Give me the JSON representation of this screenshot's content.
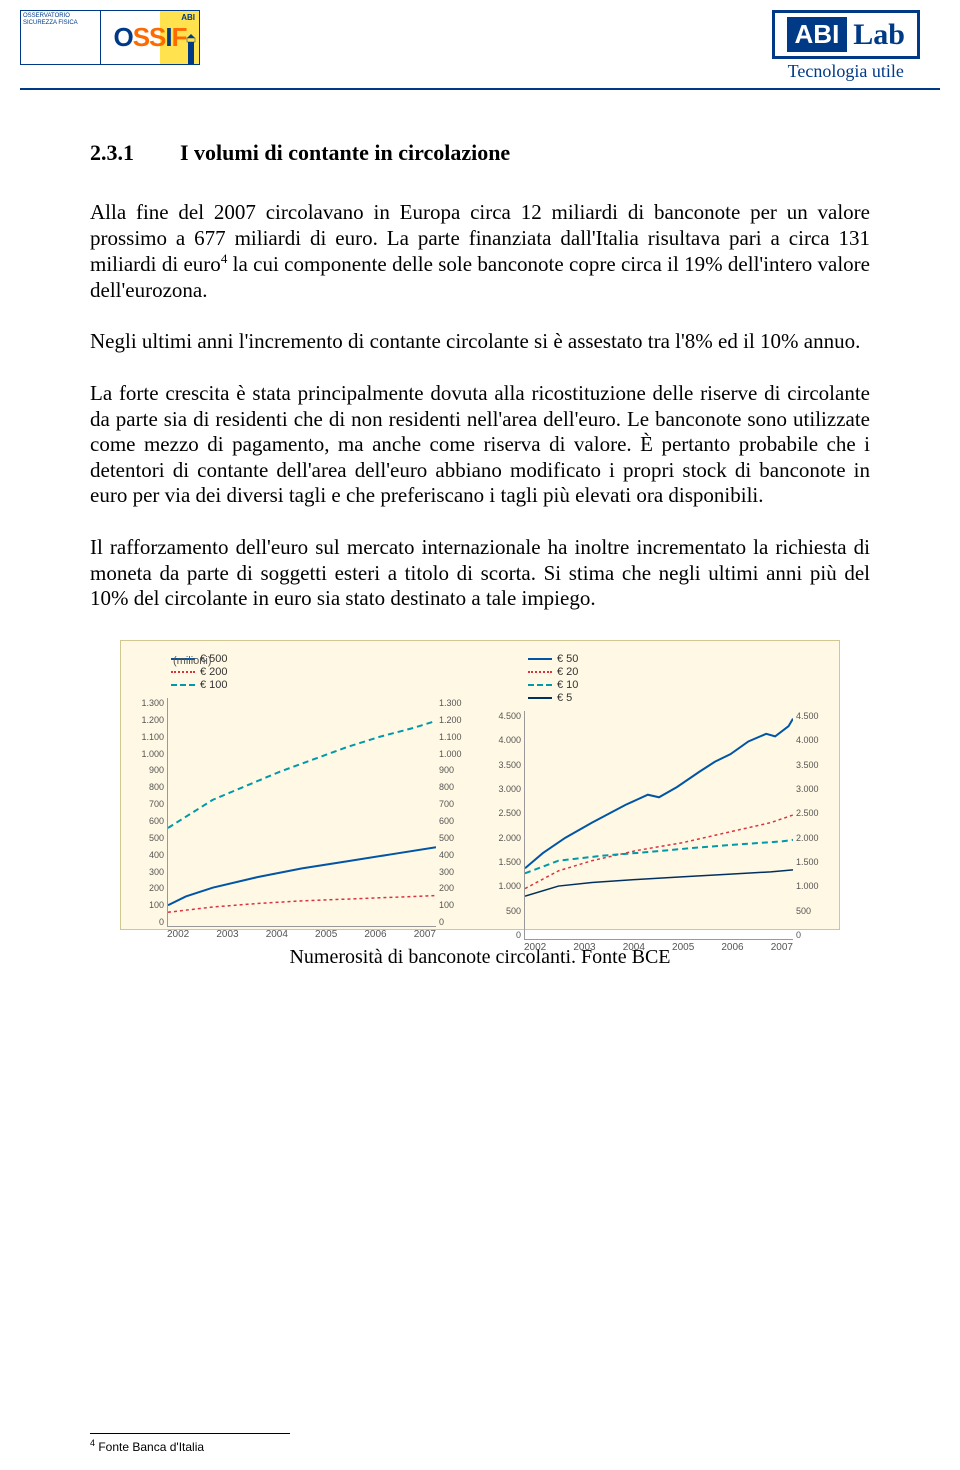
{
  "header": {
    "ossif": {
      "left_lines": "OSSERVATORIO\nSICUREZZA\nFISICA",
      "abi": "ABI",
      "letters": [
        "O",
        "S",
        "S",
        "I",
        "F"
      ]
    },
    "abilab": {
      "abi": "ABI",
      "lab": "Lab",
      "tagline": "Tecnologia utile"
    }
  },
  "section": {
    "number": "2.3.1",
    "title": "I volumi di contante in circolazione"
  },
  "body": {
    "p1a": "Alla fine del 2007 circolavano in Europa circa 12 miliardi di banconote per un valore prossimo a 677 miliardi di euro. La parte finanziata dall'Italia risultava pari a circa 131 miliardi di euro",
    "p1b": " la cui componente delle sole banconote copre circa il 19% dell'intero valore dell'eurozona.",
    "p2": "Negli ultimi anni l'incremento di contante circolante si è assestato tra l'8% ed il 10% annuo.",
    "p3": "La forte crescita è stata principalmente dovuta alla ricostituzione delle riserve di circolante da parte sia di residenti che di non residenti nell'area dell'euro. Le banconote sono utilizzate come mezzo di pagamento, ma anche come riserva di valore. È pertanto probabile che i detentori di contante dell'area dell'euro abbiano modificato i propri stock di banconote in euro per via dei diversi tagli e che preferiscano i tagli più elevati ora disponibili.",
    "p4": "Il rafforzamento dell'euro sul mercato internazionale ha inoltre incrementato la richiesta di moneta da parte di soggetti esteri a titolo di scorta. Si stima che negli ultimi anni più del 10% del circolante in euro sia stato destinato a tale impiego."
  },
  "chart": {
    "unit_label": "(milioni)",
    "caption": "Numerosità di banconote circolanti. Fonte BCE",
    "x_labels": [
      "2002",
      "2003",
      "2004",
      "2005",
      "2006",
      "2007"
    ],
    "left": {
      "legend": [
        {
          "label": "€ 500",
          "color": "#0055a5",
          "dash": "solid"
        },
        {
          "label": "€ 200",
          "color": "#d9333f",
          "dash": "dotted"
        },
        {
          "label": "€ 100",
          "color": "#0099aa",
          "dash": "dashed"
        }
      ],
      "y_ticks": [
        "1.300",
        "1.200",
        "1.100",
        "1.000",
        "900",
        "800",
        "700",
        "600",
        "500",
        "400",
        "300",
        "200",
        "100",
        "0"
      ],
      "ylim": [
        0,
        1300
      ],
      "series": {
        "e500": {
          "color": "#0055a5",
          "dash": "none",
          "width": 2,
          "points": [
            [
              0,
              120
            ],
            [
              8,
              170
            ],
            [
              20,
              220
            ],
            [
              40,
              280
            ],
            [
              60,
              330
            ],
            [
              80,
              370
            ],
            [
              100,
              410
            ],
            [
              120,
              450
            ]
          ]
        },
        "e200": {
          "color": "#d9333f",
          "dash": "3,3",
          "width": 1.5,
          "points": [
            [
              0,
              80
            ],
            [
              20,
              110
            ],
            [
              40,
              130
            ],
            [
              60,
              145
            ],
            [
              80,
              155
            ],
            [
              100,
              165
            ],
            [
              120,
              175
            ]
          ]
        },
        "e100": {
          "color": "#0099aa",
          "dash": "6,4",
          "width": 2,
          "points": [
            [
              0,
              560
            ],
            [
              10,
              640
            ],
            [
              20,
              720
            ],
            [
              35,
              800
            ],
            [
              50,
              880
            ],
            [
              65,
              950
            ],
            [
              80,
              1020
            ],
            [
              95,
              1080
            ],
            [
              110,
              1130
            ],
            [
              120,
              1170
            ]
          ]
        }
      }
    },
    "right": {
      "legend": [
        {
          "label": "€ 50",
          "color": "#0055a5",
          "dash": "solid"
        },
        {
          "label": "€ 20",
          "color": "#d9333f",
          "dash": "dotted"
        },
        {
          "label": "€ 10",
          "color": "#0099aa",
          "dash": "dashed"
        },
        {
          "label": "€ 5",
          "color": "#003060",
          "dash": "solid"
        }
      ],
      "y_ticks": [
        "4.500",
        "4.000",
        "3.500",
        "3.000",
        "2.500",
        "2.000",
        "1.500",
        "1.000",
        "500",
        "0"
      ],
      "ylim": [
        0,
        4500
      ],
      "series": {
        "e50": {
          "color": "#0055a5",
          "dash": "none",
          "width": 2,
          "points": [
            [
              0,
              1400
            ],
            [
              8,
              1700
            ],
            [
              18,
              2000
            ],
            [
              30,
              2300
            ],
            [
              45,
              2650
            ],
            [
              55,
              2850
            ],
            [
              60,
              2800
            ],
            [
              68,
              3000
            ],
            [
              78,
              3300
            ],
            [
              85,
              3500
            ],
            [
              92,
              3650
            ],
            [
              100,
              3900
            ],
            [
              108,
              4050
            ],
            [
              112,
              4000
            ],
            [
              118,
              4200
            ],
            [
              120,
              4350
            ]
          ]
        },
        "e20": {
          "color": "#d9333f",
          "dash": "3,3",
          "width": 1.5,
          "points": [
            [
              0,
              1000
            ],
            [
              15,
              1350
            ],
            [
              30,
              1550
            ],
            [
              50,
              1750
            ],
            [
              70,
              1900
            ],
            [
              90,
              2100
            ],
            [
              110,
              2300
            ],
            [
              120,
              2450
            ]
          ]
        },
        "e10": {
          "color": "#0099aa",
          "dash": "6,4",
          "width": 2,
          "points": [
            [
              0,
              1300
            ],
            [
              15,
              1550
            ],
            [
              35,
              1650
            ],
            [
              55,
              1720
            ],
            [
              75,
              1800
            ],
            [
              95,
              1870
            ],
            [
              115,
              1930
            ],
            [
              120,
              1960
            ]
          ]
        },
        "e5": {
          "color": "#003060",
          "dash": "none",
          "width": 1.5,
          "points": [
            [
              0,
              850
            ],
            [
              15,
              1050
            ],
            [
              30,
              1120
            ],
            [
              50,
              1180
            ],
            [
              70,
              1230
            ],
            [
              90,
              1280
            ],
            [
              110,
              1330
            ],
            [
              120,
              1370
            ]
          ]
        }
      }
    }
  },
  "footnote": {
    "num": "4",
    "text": " Fonte Banca d'Italia"
  }
}
